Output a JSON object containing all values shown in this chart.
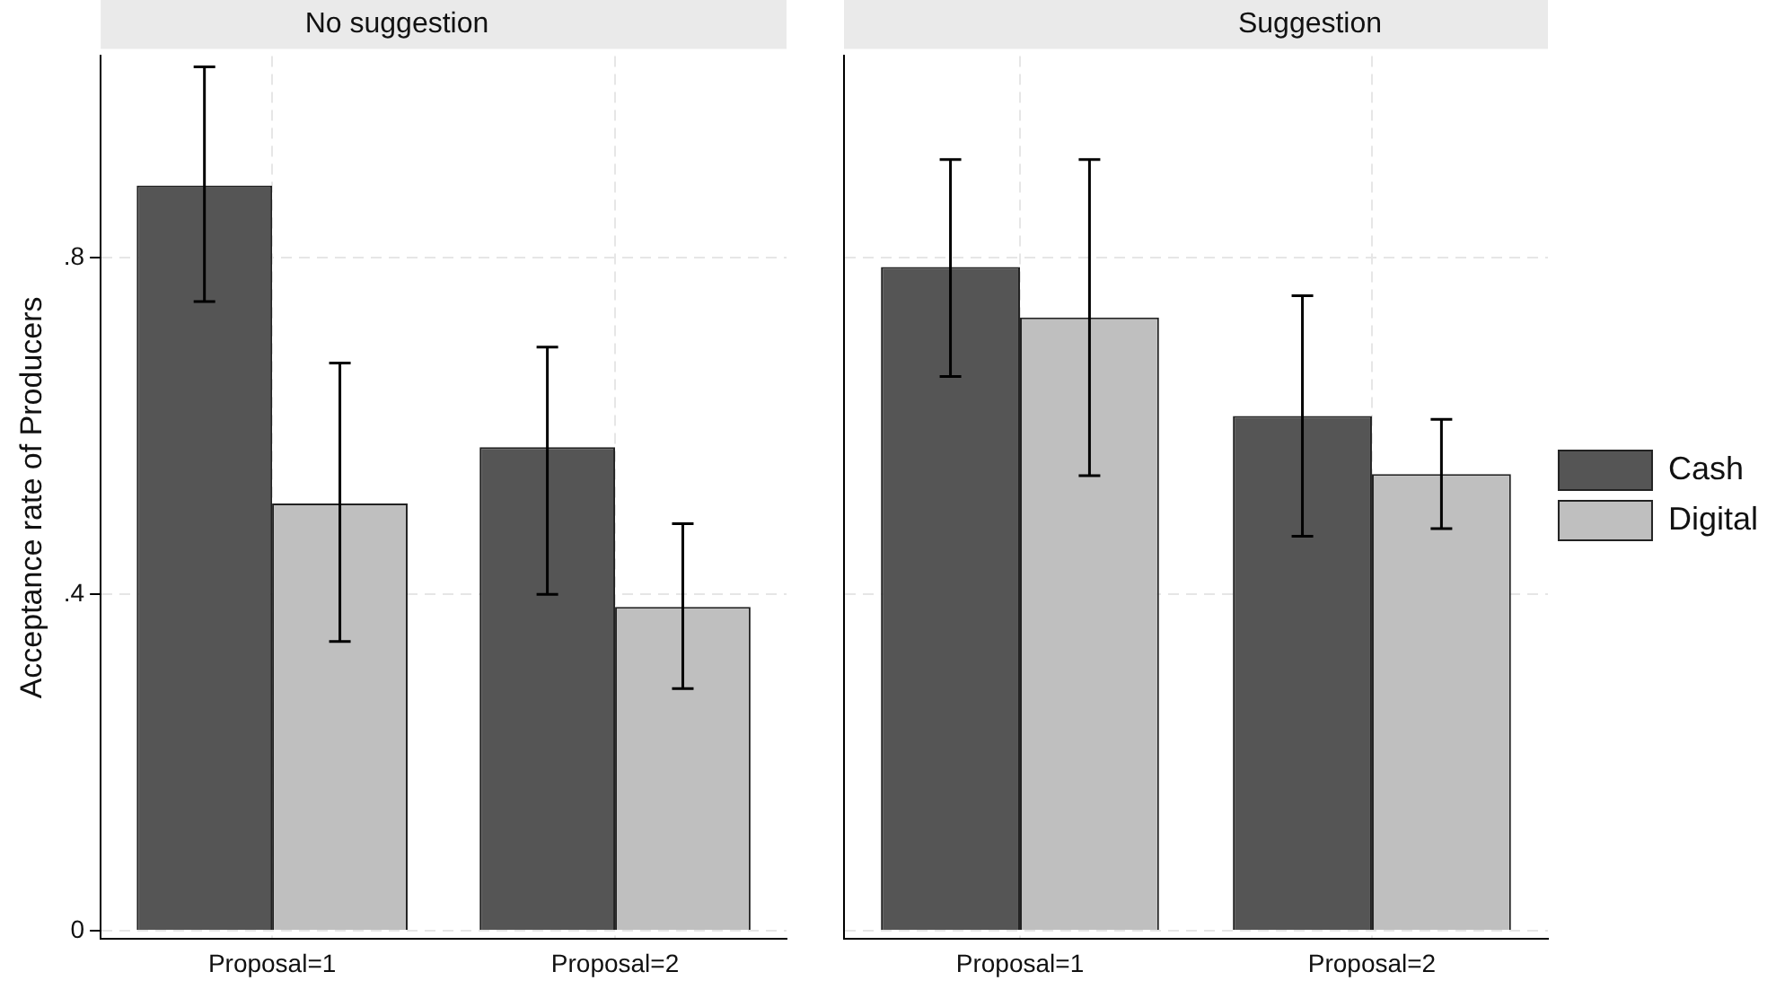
{
  "chart_data": [
    {
      "type": "bar",
      "title": "No suggestion",
      "ylabel": "Acceptance rate of Producers",
      "categories": [
        "Proposal=1",
        "Proposal=2"
      ],
      "series": [
        {
          "color": "#555555",
          "values": [
            0.886,
            0.575
          ],
          "errors": [
            [
              0.748,
              1.027
            ],
            [
              0.4,
              0.694
            ]
          ]
        },
        {
          "color": "#bfbfbf",
          "values": [
            0.508,
            0.385
          ],
          "errors": [
            [
              0.344,
              0.675
            ],
            [
              0.288,
              0.484
            ]
          ]
        }
      ],
      "ylim": [
        -0.01,
        1.04
      ],
      "yticks": [
        {
          "value": 0,
          "label": "0"
        },
        {
          "value": 0.4,
          "label": ".4"
        },
        {
          "value": 0.8,
          "label": ".8"
        }
      ],
      "grid": true,
      "legend": false
    },
    {
      "type": "bar",
      "title": "Suggestion",
      "categories": [
        "Proposal=1",
        "Proposal=2"
      ],
      "series": [
        {
          "name": "Cash",
          "color": "#555555",
          "values": [
            0.789,
            0.612
          ],
          "errors": [
            [
              0.659,
              0.917
            ],
            [
              0.469,
              0.755
            ]
          ]
        },
        {
          "name": "Digital",
          "color": "#bfbfbf",
          "values": [
            0.729,
            0.543
          ],
          "errors": [
            [
              0.541,
              0.917
            ],
            [
              0.478,
              0.608
            ]
          ]
        }
      ],
      "ylim": [
        -0.01,
        1.04
      ],
      "yticks": [
        0,
        0.4,
        0.8
      ],
      "grid": true,
      "legend": "right",
      "tick_labels": "x"
    }
  ]
}
